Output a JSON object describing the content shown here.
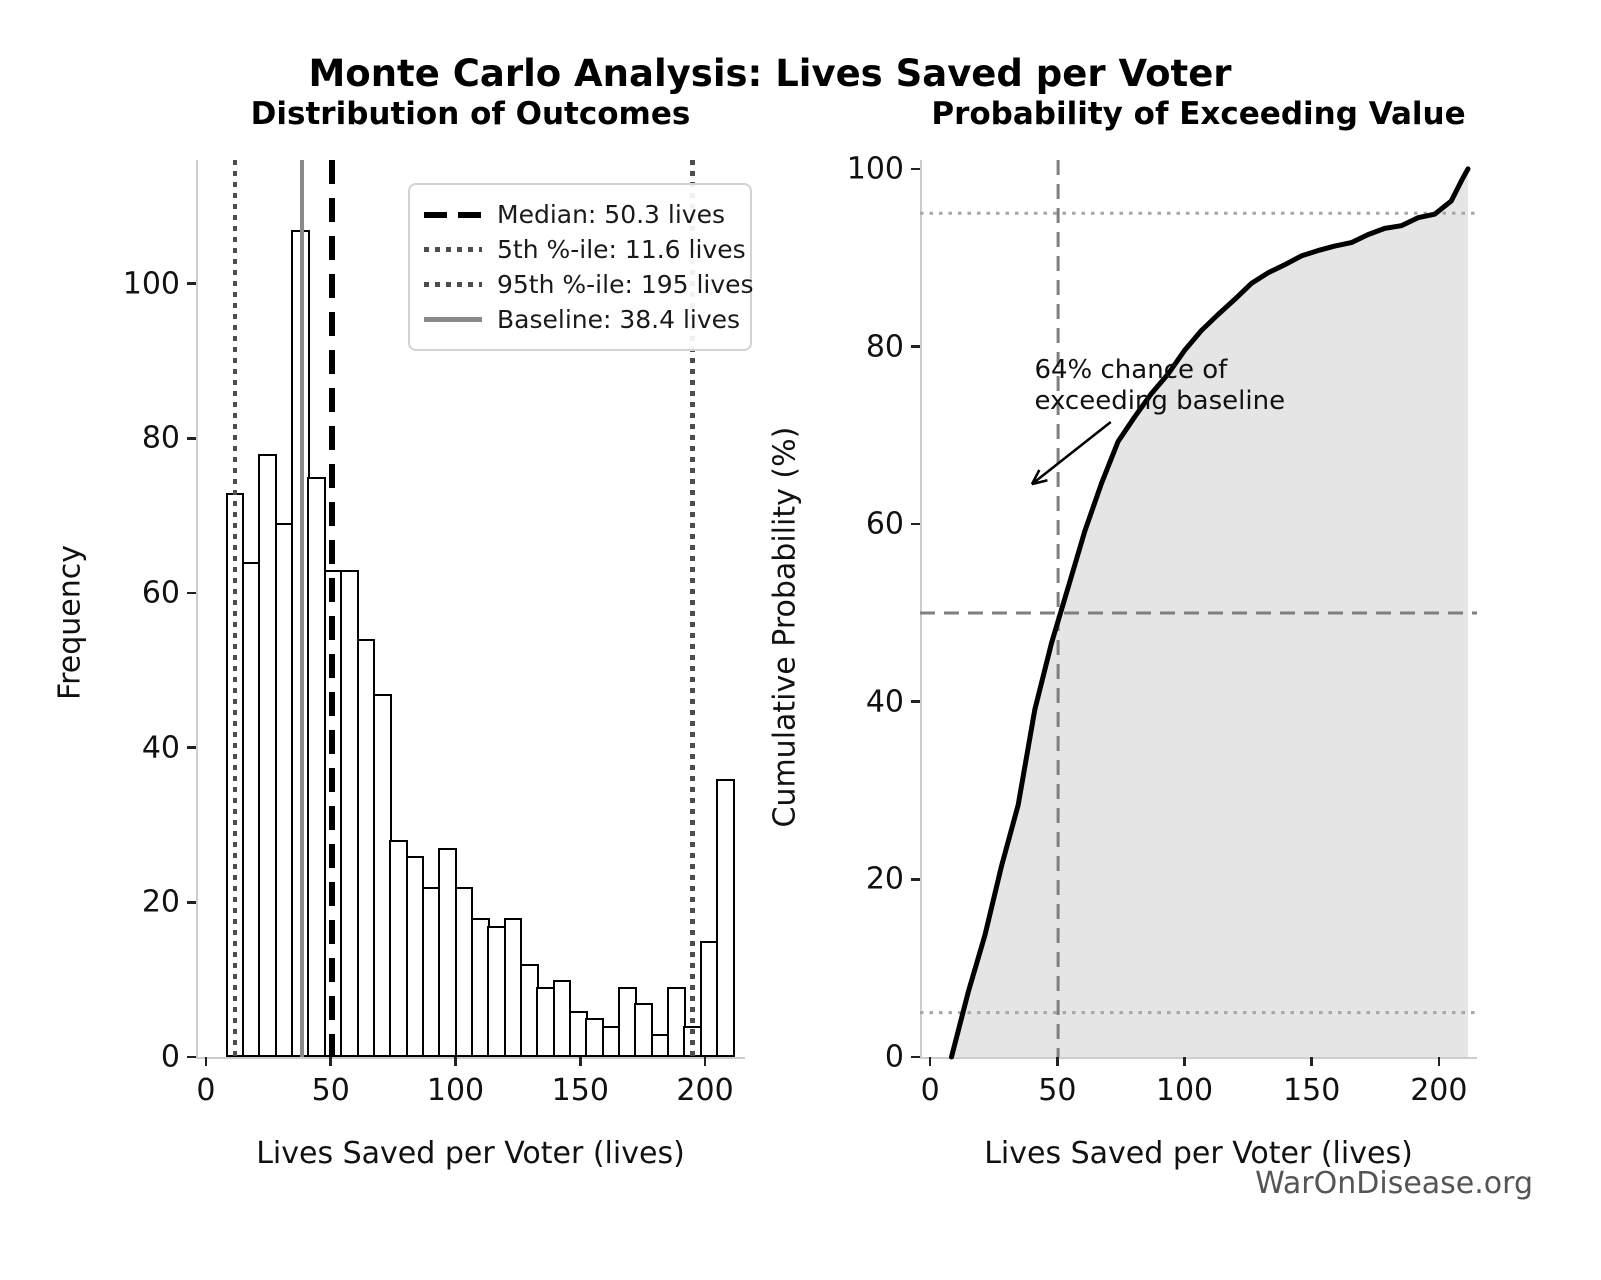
{
  "figure": {
    "title": "Monte Carlo Analysis: Lives Saved per Voter",
    "watermark": "WarOnDisease.org",
    "colors": {
      "bar_fill": "#ffffff",
      "bar_edge": "#000000",
      "median": "#000000",
      "percentile": "#4d4d4d",
      "baseline": "#8a8a8a",
      "cdf_line": "#000000",
      "cdf_fill": "#e5e5e5",
      "ref_dashed_gray": "#7f7f7f",
      "ref_dotted_gray": "#a6a6a6",
      "spine": "#cccccc",
      "tick": "#222222",
      "watermark_color": "#555555"
    }
  },
  "chart_data": [
    {
      "type": "bar",
      "subtype": "histogram",
      "title": "Distribution of Outcomes",
      "xlabel": "Lives Saved per Voter (lives)",
      "ylabel": "Frequency",
      "bin_start": 8.4,
      "bin_width": 6.55,
      "frequencies": [
        73,
        64,
        78,
        69,
        107,
        75,
        63,
        63,
        54,
        47,
        28,
        26,
        22,
        27,
        22,
        18,
        17,
        18,
        12,
        9,
        10,
        6,
        5,
        4,
        9,
        7,
        3,
        9,
        4,
        15,
        36
      ],
      "total_samples": 1000,
      "xticks": [
        0,
        50,
        100,
        150,
        200
      ],
      "yticks": [
        0,
        20,
        40,
        60,
        80,
        100
      ],
      "xlim": [
        -4,
        216
      ],
      "ylim": [
        0,
        116
      ],
      "grid": false,
      "legend_position": "upper right",
      "ref_lines": [
        {
          "value": 50.3,
          "style": "dashed",
          "color_key": "median",
          "legend": "Median: 50.3 lives"
        },
        {
          "value": 11.6,
          "style": "dotted",
          "color_key": "percentile",
          "legend": "5th %-ile: 11.6 lives"
        },
        {
          "value": 195,
          "style": "dotted",
          "color_key": "percentile",
          "legend": "95th %-ile: 195 lives"
        },
        {
          "value": 38.4,
          "style": "solid",
          "color_key": "baseline",
          "legend": "Baseline: 38.4 lives"
        }
      ]
    },
    {
      "type": "line",
      "subtype": "empirical-cdf",
      "title": "Probability of Exceeding Value",
      "xlabel": "Lives Saved per Voter (lives)",
      "ylabel": "Cumulative Probability (%)",
      "xticks": [
        0,
        50,
        100,
        150,
        200
      ],
      "yticks": [
        0,
        20,
        40,
        60,
        80,
        100
      ],
      "xlim": [
        -4,
        215
      ],
      "ylim": [
        0,
        101
      ],
      "grid": false,
      "cdf_points": [
        [
          8.4,
          0
        ],
        [
          14.95,
          7.3
        ],
        [
          21.5,
          13.7
        ],
        [
          28.05,
          21.5
        ],
        [
          34.6,
          28.4
        ],
        [
          41.15,
          39.1
        ],
        [
          47.7,
          46.6
        ],
        [
          54.25,
          52.9
        ],
        [
          60.8,
          59.2
        ],
        [
          67.35,
          64.6
        ],
        [
          73.9,
          69.3
        ],
        [
          80.45,
          72.1
        ],
        [
          87.0,
          74.7
        ],
        [
          93.55,
          76.9
        ],
        [
          100.1,
          79.6
        ],
        [
          106.65,
          81.8
        ],
        [
          113.2,
          83.6
        ],
        [
          119.75,
          85.3
        ],
        [
          126.3,
          87.1
        ],
        [
          132.85,
          88.3
        ],
        [
          139.4,
          89.2
        ],
        [
          145.95,
          90.2
        ],
        [
          152.5,
          90.8
        ],
        [
          159.05,
          91.3
        ],
        [
          165.6,
          91.7
        ],
        [
          172.15,
          92.6
        ],
        [
          178.7,
          93.3
        ],
        [
          185.25,
          93.6
        ],
        [
          191.8,
          94.5
        ],
        [
          198.35,
          94.9
        ],
        [
          204.9,
          96.4
        ],
        [
          209.5,
          99.0
        ],
        [
          211.45,
          100
        ]
      ],
      "fill_to_x": 211.45,
      "hlines": [
        {
          "y": 5,
          "style": "dotted"
        },
        {
          "y": 50,
          "style": "dashed"
        },
        {
          "y": 95,
          "style": "dotted"
        }
      ],
      "vlines": [
        {
          "x": 50.3,
          "style": "dashed"
        }
      ],
      "annotation": {
        "line1": "64% chance of",
        "line2": "exceeding baseline",
        "text_xy": [
          41,
          79
        ],
        "arrow_from": [
          71,
          71.5
        ],
        "arrow_to": [
          40,
          64.5
        ]
      }
    }
  ]
}
